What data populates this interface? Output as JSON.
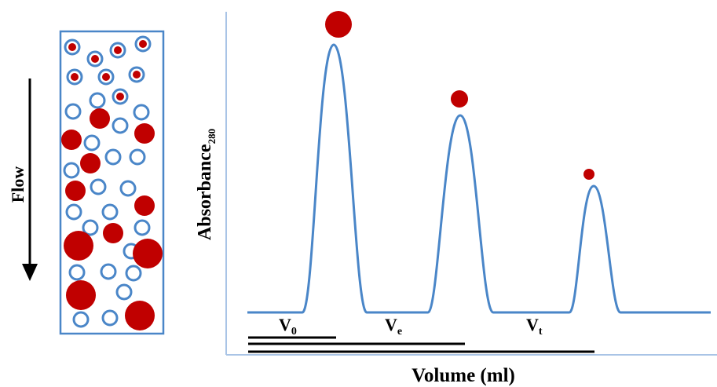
{
  "flow_label": "Flow",
  "y_axis": {
    "label": "Absorbance",
    "subscript": "280"
  },
  "x_axis": {
    "label": "Volume (ml)"
  },
  "volumes": [
    {
      "symbol": "V",
      "subscript": "0"
    },
    {
      "symbol": "V",
      "subscript": "e"
    },
    {
      "symbol": "V",
      "subscript": "t"
    }
  ]
}
